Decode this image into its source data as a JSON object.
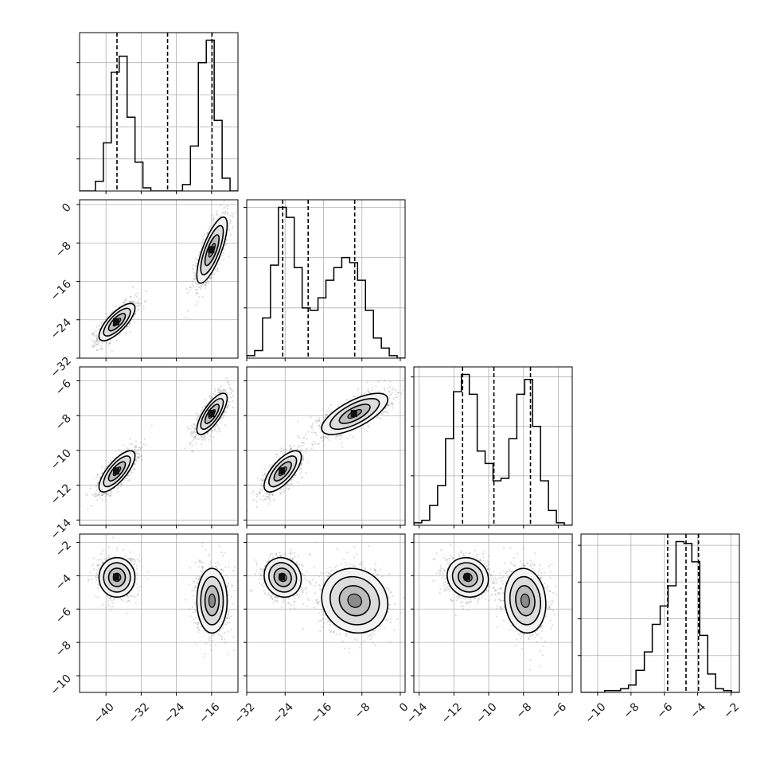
{
  "chart_data": {
    "type": "corner",
    "variables": [
      {
        "range": [
          -46,
          -10
        ],
        "ticks": [
          -40,
          -32,
          -24,
          -16
        ],
        "quantiles": [
          -37.5,
          -26.0,
          -15.9
        ]
      },
      {
        "range": [
          -32,
          1
        ],
        "ticks": [
          -32,
          -24,
          -16,
          -8,
          0
        ],
        "quantiles": [
          -24.5,
          -19.2,
          -9.5
        ]
      },
      {
        "range": [
          -14.3,
          -5.2
        ],
        "ticks": [
          -14,
          -12,
          -10,
          -8,
          -6
        ],
        "quantiles": [
          -11.5,
          -9.7,
          -7.6
        ]
      },
      {
        "range": [
          -11,
          -1.5
        ],
        "ticks": [
          -10,
          -8,
          -6,
          -4,
          -2
        ],
        "quantiles": [
          -5.8,
          -4.7,
          -3.95
        ]
      }
    ],
    "histograms": [
      {
        "var": 0,
        "edges": [
          -46.0,
          -44.2,
          -42.4,
          -40.6,
          -38.8,
          -37.0,
          -35.2,
          -33.4,
          -31.6,
          -29.8,
          -28.0,
          -26.2,
          -24.4,
          -22.6,
          -20.8,
          -19.0,
          -17.2,
          -15.4,
          -13.6,
          -11.8,
          -10.0
        ],
        "counts": [
          0,
          0,
          3,
          15,
          37,
          42,
          23,
          9,
          1,
          0,
          0,
          0,
          0,
          2,
          14,
          40,
          47,
          22,
          4,
          0
        ]
      },
      {
        "var": 1,
        "edges": [
          -32.0,
          -30.35,
          -28.7,
          -27.05,
          -25.4,
          -23.75,
          -22.1,
          -20.45,
          -18.8,
          -17.15,
          -15.5,
          -13.85,
          -12.2,
          -10.55,
          -8.9,
          -7.25,
          -5.6,
          -3.95,
          -2.3,
          -0.65,
          1.0
        ],
        "counts": [
          1,
          3,
          16,
          37,
          60,
          56,
          36,
          20,
          19,
          24,
          31,
          36,
          40,
          38,
          31,
          19,
          8,
          4,
          1,
          0
        ]
      },
      {
        "var": 2,
        "edges": [
          -14.3,
          -13.845,
          -13.39,
          -12.935,
          -12.48,
          -12.025,
          -11.57,
          -11.115,
          -10.66,
          -10.205,
          -9.75,
          -9.295,
          -8.84,
          -8.385,
          -7.93,
          -7.475,
          -7.02,
          -6.565,
          -6.11,
          -5.655,
          -5.2
        ],
        "counts": [
          1,
          2,
          8,
          16,
          35,
          54,
          61,
          53,
          30,
          25,
          18,
          19,
          35,
          53,
          59,
          40,
          18,
          6,
          1,
          0
        ]
      },
      {
        "var": 3,
        "edges": [
          -11.0,
          -10.525,
          -10.05,
          -9.575,
          -9.1,
          -8.625,
          -8.15,
          -7.7,
          -7.2,
          -6.725,
          -6.25,
          -5.775,
          -5.3,
          -4.825,
          -4.35,
          -3.875,
          -3.4,
          -2.925,
          -2.45,
          -1.975,
          -1.5
        ],
        "counts": [
          0,
          0,
          0,
          1,
          1,
          2,
          4,
          12,
          22,
          37,
          47,
          58,
          82,
          81,
          71,
          31,
          10,
          2,
          1,
          0
        ]
      }
    ],
    "modes": [
      {
        "center": [
          -37.5,
          -24.5,
          -11.2,
          -4.1
        ],
        "sd": [
          1.9,
          1.8,
          0.55,
          0.55
        ],
        "weight": 0.5
      },
      {
        "center": [
          -15.9,
          -9.5,
          -7.9,
          -5.5
        ],
        "sd": [
          1.6,
          3.2,
          0.55,
          0.9
        ],
        "weight": 0.5
      }
    ],
    "correlations": [
      [
        1,
        0.75,
        0.75,
        0.0
      ],
      [
        0.75,
        1,
        0.7,
        -0.1
      ],
      [
        0.75,
        0.7,
        1,
        -0.1
      ],
      [
        0.0,
        -0.1,
        -0.1,
        1
      ]
    ],
    "grid": true,
    "line_color": "#000000",
    "scatter_color": "#808080"
  }
}
